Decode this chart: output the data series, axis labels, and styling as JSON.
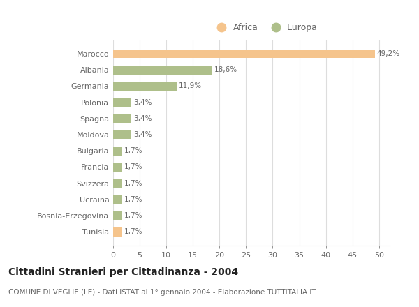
{
  "categories": [
    "Marocco",
    "Albania",
    "Germania",
    "Polonia",
    "Spagna",
    "Moldova",
    "Bulgaria",
    "Francia",
    "Svizzera",
    "Ucraina",
    "Bosnia-Erzegovina",
    "Tunisia"
  ],
  "values": [
    49.2,
    18.6,
    11.9,
    3.4,
    3.4,
    3.4,
    1.7,
    1.7,
    1.7,
    1.7,
    1.7,
    1.7
  ],
  "labels": [
    "49,2%",
    "18,6%",
    "11,9%",
    "3,4%",
    "3,4%",
    "3,4%",
    "1,7%",
    "1,7%",
    "1,7%",
    "1,7%",
    "1,7%",
    "1,7%"
  ],
  "colors": [
    "#F5C48C",
    "#AEBF8A",
    "#AEBF8A",
    "#AEBF8A",
    "#AEBF8A",
    "#AEBF8A",
    "#AEBF8A",
    "#AEBF8A",
    "#AEBF8A",
    "#AEBF8A",
    "#AEBF8A",
    "#F5C48C"
  ],
  "legend_africa_color": "#F5C48C",
  "legend_europa_color": "#AEBF8A",
  "title": "Cittadini Stranieri per Cittadinanza - 2004",
  "subtitle": "COMUNE DI VEGLIE (LE) - Dati ISTAT al 1° gennaio 2004 - Elaborazione TUTTITALIA.IT",
  "xlim": [
    0,
    52
  ],
  "xticks": [
    0,
    5,
    10,
    15,
    20,
    25,
    30,
    35,
    40,
    45,
    50
  ],
  "background_color": "#ffffff",
  "grid_color": "#dddddd",
  "bar_height": 0.55,
  "title_fontsize": 10,
  "subtitle_fontsize": 7.5,
  "label_fontsize": 7.5,
  "tick_fontsize": 8,
  "ytick_fontsize": 8,
  "text_color": "#666666",
  "title_color": "#222222"
}
